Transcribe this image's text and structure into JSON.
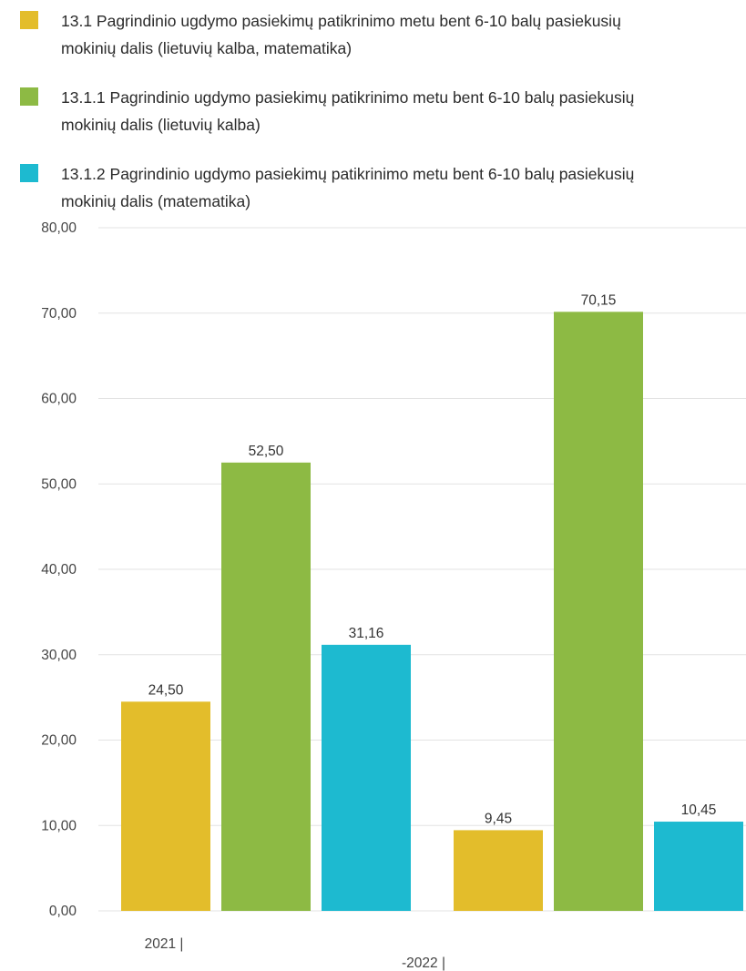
{
  "chart_data": {
    "type": "bar",
    "categories": [
      "2021 |",
      "-2022 |"
    ],
    "series": [
      {
        "name": "13.1 Pagrindinio ugdymo pasiekimų patikrinimo metu bent 6-10 balų pasiekusių mokinių dalis (lietuvių kalba, matematika)",
        "values": [
          24.5,
          9.45
        ],
        "value_labels": [
          "24,50",
          "9,45"
        ],
        "color": "#e3bd2b"
      },
      {
        "name": "13.1.1 Pagrindinio ugdymo pasiekimų patikrinimo metu bent 6-10 balų pasiekusių mokinių dalis (lietuvių kalba)",
        "values": [
          52.5,
          70.15
        ],
        "value_labels": [
          "52,50",
          "70,15"
        ],
        "color": "#8dba44"
      },
      {
        "name": "13.1.2 Pagrindinio ugdymo pasiekimų patikrinimo metu bent 6-10 balų pasiekusių mokinių dalis (matematika)",
        "values": [
          31.16,
          10.45
        ],
        "value_labels": [
          "31,16",
          "10,45"
        ],
        "color": "#1dbad0"
      }
    ],
    "y_ticks": [
      0,
      10,
      20,
      30,
      40,
      50,
      60,
      70,
      80
    ],
    "y_tick_labels": [
      "0,00",
      "10,00",
      "20,00",
      "30,00",
      "40,00",
      "50,00",
      "60,00",
      "70,00",
      "80,00"
    ],
    "ylim": [
      0,
      80
    ],
    "xlabel": "",
    "ylabel": "",
    "title": "",
    "grid": true,
    "legend_position": "top-left"
  }
}
